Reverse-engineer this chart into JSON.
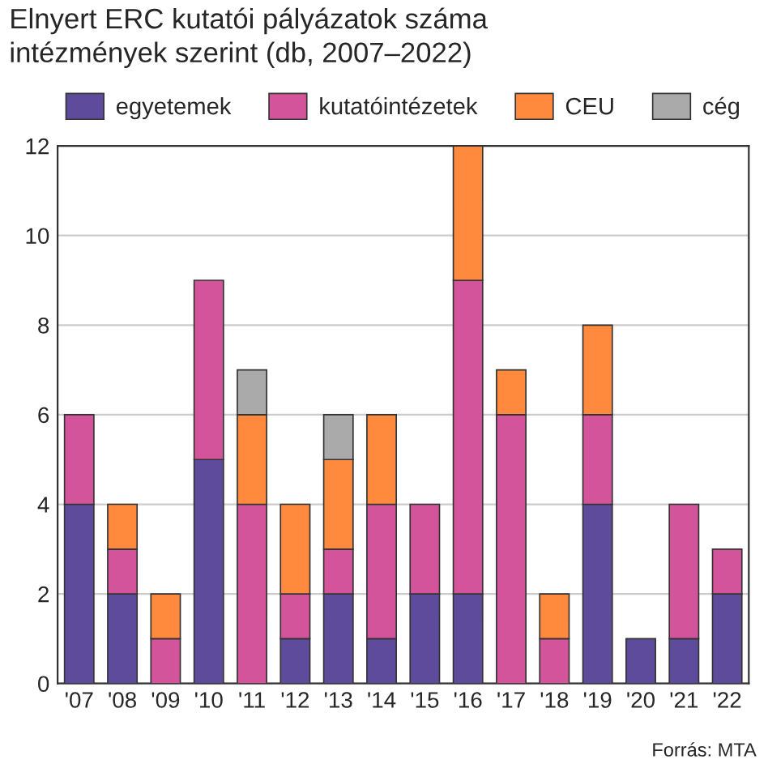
{
  "chart_data": {
    "type": "bar",
    "title": "Elnyert ERC kutatói pályázatok száma\nintézmények szerint (db, 2007–2022)",
    "categories": [
      "'07",
      "'08",
      "'09",
      "'10",
      "'11",
      "'12",
      "'13",
      "'14",
      "'15",
      "'16",
      "'17",
      "'18",
      "'19",
      "'20",
      "'21",
      "'22"
    ],
    "series": [
      {
        "name": "egyetemek",
        "color": "#5f4b9b",
        "values": [
          4,
          2,
          0,
          5,
          0,
          1,
          2,
          1,
          2,
          2,
          0,
          0,
          4,
          1,
          1,
          2
        ]
      },
      {
        "name": "kutatóintézetek",
        "color": "#d3549b",
        "values": [
          2,
          1,
          1,
          4,
          4,
          1,
          1,
          3,
          2,
          7,
          6,
          1,
          2,
          0,
          3,
          1
        ]
      },
      {
        "name": "CEU",
        "color": "#ff8a3d",
        "values": [
          0,
          1,
          1,
          0,
          2,
          2,
          2,
          2,
          0,
          3,
          1,
          1,
          2,
          0,
          0,
          0
        ]
      },
      {
        "name": "cég",
        "color": "#aaaaaa",
        "values": [
          0,
          0,
          0,
          0,
          1,
          0,
          1,
          0,
          0,
          0,
          0,
          0,
          0,
          0,
          0,
          0
        ]
      }
    ],
    "stacked": true,
    "ylim": [
      0,
      12
    ],
    "yticks": [
      0,
      2,
      4,
      6,
      8,
      10,
      12
    ],
    "grid": "y",
    "legend": "top",
    "annotations": [
      "Forrás: MTA"
    ]
  }
}
